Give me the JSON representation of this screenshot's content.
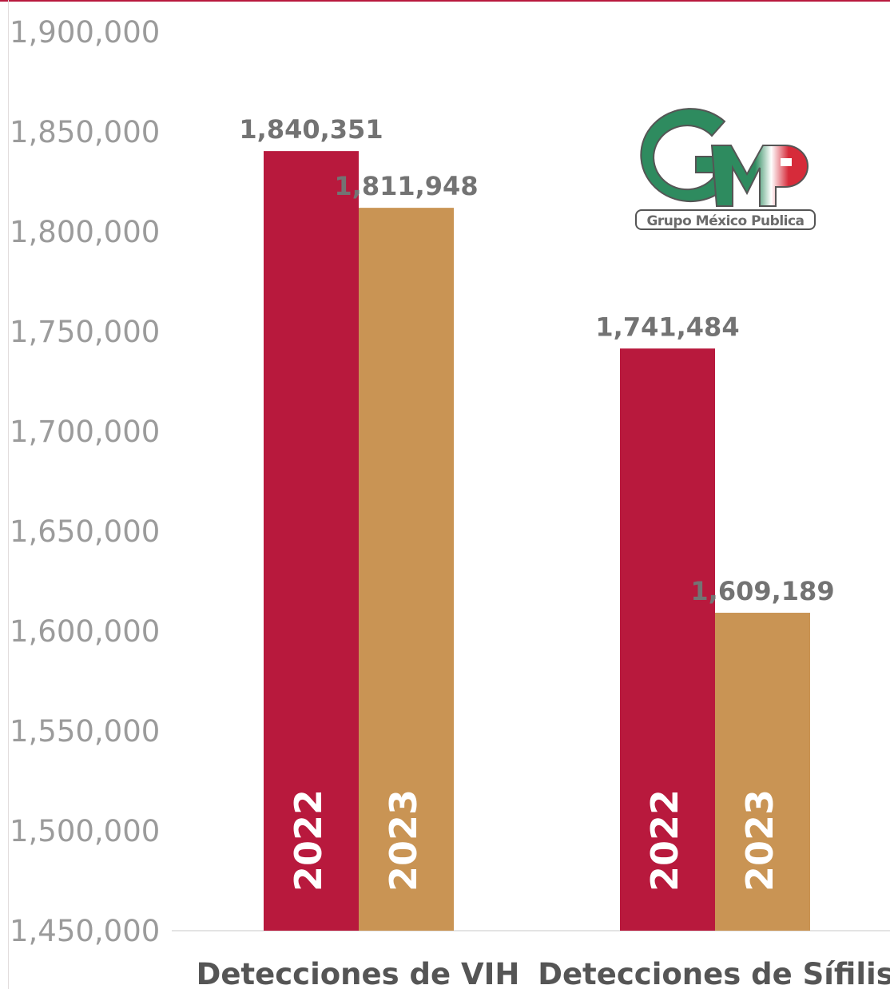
{
  "chart_data": {
    "type": "bar",
    "title": "",
    "xlabel": "",
    "ylabel": "",
    "ylim": [
      1450000,
      1900000
    ],
    "yticks": [
      "1,450,000",
      "1,500,000",
      "1,550,000",
      "1,600,000",
      "1,650,000",
      "1,700,000",
      "1,750,000",
      "1,800,000",
      "1,850,000",
      "1,900,000"
    ],
    "categories": [
      "Detecciones de VIH",
      "Detecciones de Sífilis"
    ],
    "series": [
      {
        "name": "2022",
        "color": "#b8193d",
        "values": [
          1840351,
          1741484
        ],
        "labels": [
          "1,840,351",
          "1,741,484"
        ]
      },
      {
        "name": "2023",
        "color": "#c99454",
        "values": [
          1811948,
          1609189
        ],
        "labels": [
          "1,811,948",
          "1,609,189"
        ]
      }
    ],
    "grid": false,
    "legend": "none"
  },
  "logo": {
    "caption": "Grupo México Publica",
    "letters": "GMP",
    "colors": {
      "green": "#2e8b5f",
      "red": "#d62b3a"
    }
  }
}
